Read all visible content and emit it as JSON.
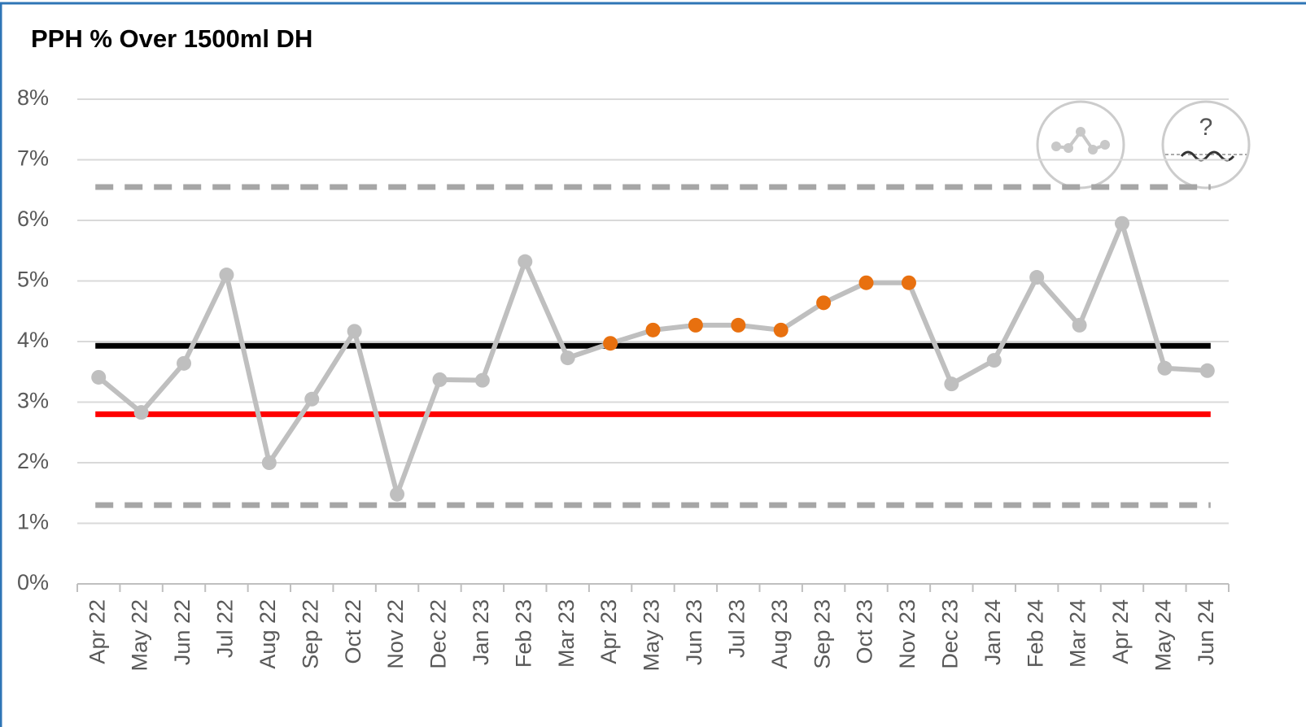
{
  "chart_data": {
    "type": "line",
    "title": "PPH % Over 1500ml DH",
    "categories": [
      "Apr 22",
      "May 22",
      "Jun 22",
      "Jul 22",
      "Aug 22",
      "Sep 22",
      "Oct 22",
      "Nov 22",
      "Dec 22",
      "Jan 23",
      "Feb 23",
      "Mar 23",
      "Apr 23",
      "May 23",
      "Jun 23",
      "Jul 23",
      "Aug 23",
      "Sep 23",
      "Oct 23",
      "Nov 23",
      "Dec 23",
      "Jan 24",
      "Feb 24",
      "Mar 24",
      "Apr 24",
      "May 24",
      "Jun 24"
    ],
    "values": [
      3.41,
      2.83,
      3.64,
      5.1,
      2.0,
      3.05,
      4.17,
      1.48,
      3.37,
      3.36,
      5.32,
      3.73,
      3.97,
      4.19,
      4.27,
      4.27,
      4.19,
      4.64,
      4.97,
      4.97,
      3.3,
      3.69,
      5.06,
      4.27,
      5.95,
      3.56,
      3.52
    ],
    "color": "#bfbfbf",
    "point_colors": [
      "#bfbfbf",
      "#bfbfbf",
      "#bfbfbf",
      "#bfbfbf",
      "#bfbfbf",
      "#bfbfbf",
      "#bfbfbf",
      "#bfbfbf",
      "#bfbfbf",
      "#bfbfbf",
      "#bfbfbf",
      "#bfbfbf",
      "#e8700f",
      "#e8700f",
      "#e8700f",
      "#e8700f",
      "#e8700f",
      "#e8700f",
      "#e8700f",
      "#e8700f",
      "#bfbfbf",
      "#bfbfbf",
      "#bfbfbf",
      "#bfbfbf",
      "#bfbfbf",
      "#bfbfbf",
      "#bfbfbf"
    ],
    "reference_lines": [
      {
        "value": 6.55,
        "color": "#a6a6a6",
        "style": "dashed"
      },
      {
        "value": 3.93,
        "color": "#000000",
        "style": "solid"
      },
      {
        "value": 2.8,
        "color": "#ff0000",
        "style": "solid"
      },
      {
        "value": 1.3,
        "color": "#a6a6a6",
        "style": "dashed"
      }
    ],
    "ylim": [
      0,
      8
    ],
    "yticks": [
      {
        "value": 0,
        "label": "0%"
      },
      {
        "value": 1,
        "label": "1%"
      },
      {
        "value": 2,
        "label": "2%"
      },
      {
        "value": 3,
        "label": "3%"
      },
      {
        "value": 4,
        "label": "4%"
      },
      {
        "value": 5,
        "label": "5%"
      },
      {
        "value": 6,
        "label": "6%"
      },
      {
        "value": 7,
        "label": "7%"
      },
      {
        "value": 8,
        "label": "8%"
      }
    ],
    "grid": true
  }
}
